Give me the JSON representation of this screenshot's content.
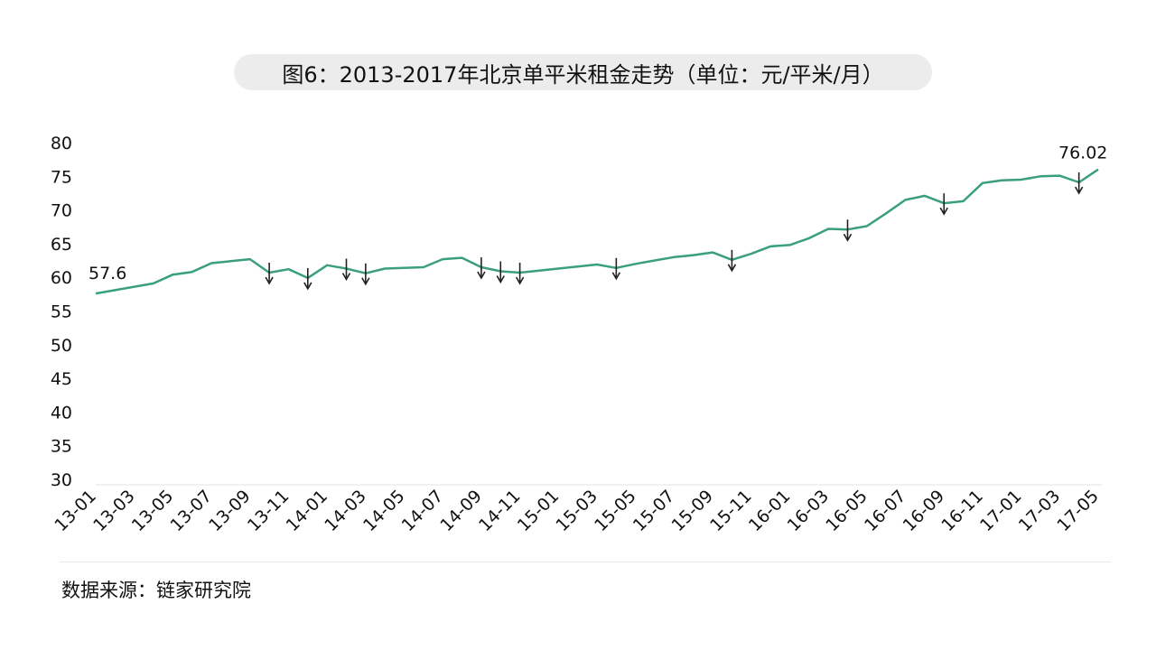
{
  "title": "图6：2013-2017年北京单平米租金走势（单位：元/平米/月）",
  "source": "数据来源：链家研究院",
  "chart_data": {
    "type": "line",
    "title": "图6：2013-2017年北京单平米租金走势（单位：元/平米/月）",
    "xlabel": "",
    "ylabel": "",
    "ylim": [
      30,
      80
    ],
    "yticks": [
      30,
      35,
      40,
      45,
      50,
      55,
      60,
      65,
      70,
      75,
      80
    ],
    "grid": false,
    "line_color": "#3aa07c",
    "categories": [
      "13-01",
      "13-02",
      "13-03",
      "13-04",
      "13-05",
      "13-06",
      "13-07",
      "13-08",
      "13-09",
      "13-10",
      "13-11",
      "13-12",
      "14-01",
      "14-02",
      "14-03",
      "14-04",
      "14-05",
      "14-06",
      "14-07",
      "14-08",
      "14-09",
      "14-10",
      "14-11",
      "14-12",
      "15-01",
      "15-02",
      "15-03",
      "15-04",
      "15-05",
      "15-06",
      "15-07",
      "15-08",
      "15-09",
      "15-10",
      "15-11",
      "15-12",
      "16-01",
      "16-02",
      "16-03",
      "16-04",
      "16-05",
      "16-06",
      "16-07",
      "16-08",
      "16-09",
      "16-10",
      "16-11",
      "16-12",
      "17-01",
      "17-02",
      "17-03",
      "17-04",
      "17-05"
    ],
    "tick_labels": [
      "13-01",
      "13-03",
      "13-05",
      "13-07",
      "13-09",
      "13-11",
      "14-01",
      "14-03",
      "14-05",
      "14-07",
      "14-09",
      "14-11",
      "15-01",
      "15-03",
      "15-05",
      "15-07",
      "15-09",
      "15-11",
      "16-01",
      "16-03",
      "16-05",
      "16-07",
      "16-09",
      "16-11",
      "17-01",
      "17-03",
      "17-05"
    ],
    "values": [
      57.6,
      58.1,
      58.6,
      59.1,
      60.4,
      60.8,
      62.1,
      62.4,
      62.7,
      60.7,
      61.2,
      59.9,
      61.8,
      61.3,
      60.6,
      61.3,
      61.4,
      61.5,
      62.7,
      62.9,
      61.5,
      60.9,
      60.7,
      61.0,
      61.3,
      61.6,
      61.9,
      61.4,
      62.0,
      62.5,
      63.0,
      63.3,
      63.7,
      62.6,
      63.5,
      64.6,
      64.8,
      65.8,
      67.2,
      67.1,
      67.6,
      69.5,
      71.5,
      72.1,
      71.0,
      71.3,
      74.0,
      74.4,
      74.5,
      75.0,
      75.1,
      74.1,
      76.02
    ],
    "down_arrows": [
      "13-10",
      "13-12",
      "14-02",
      "14-03",
      "14-09",
      "14-10",
      "14-11",
      "15-04",
      "15-10",
      "16-04",
      "16-09",
      "17-04"
    ],
    "annotations": [
      {
        "category": "13-01",
        "text": "57.6"
      },
      {
        "category": "17-05",
        "text": "76.02"
      }
    ]
  }
}
